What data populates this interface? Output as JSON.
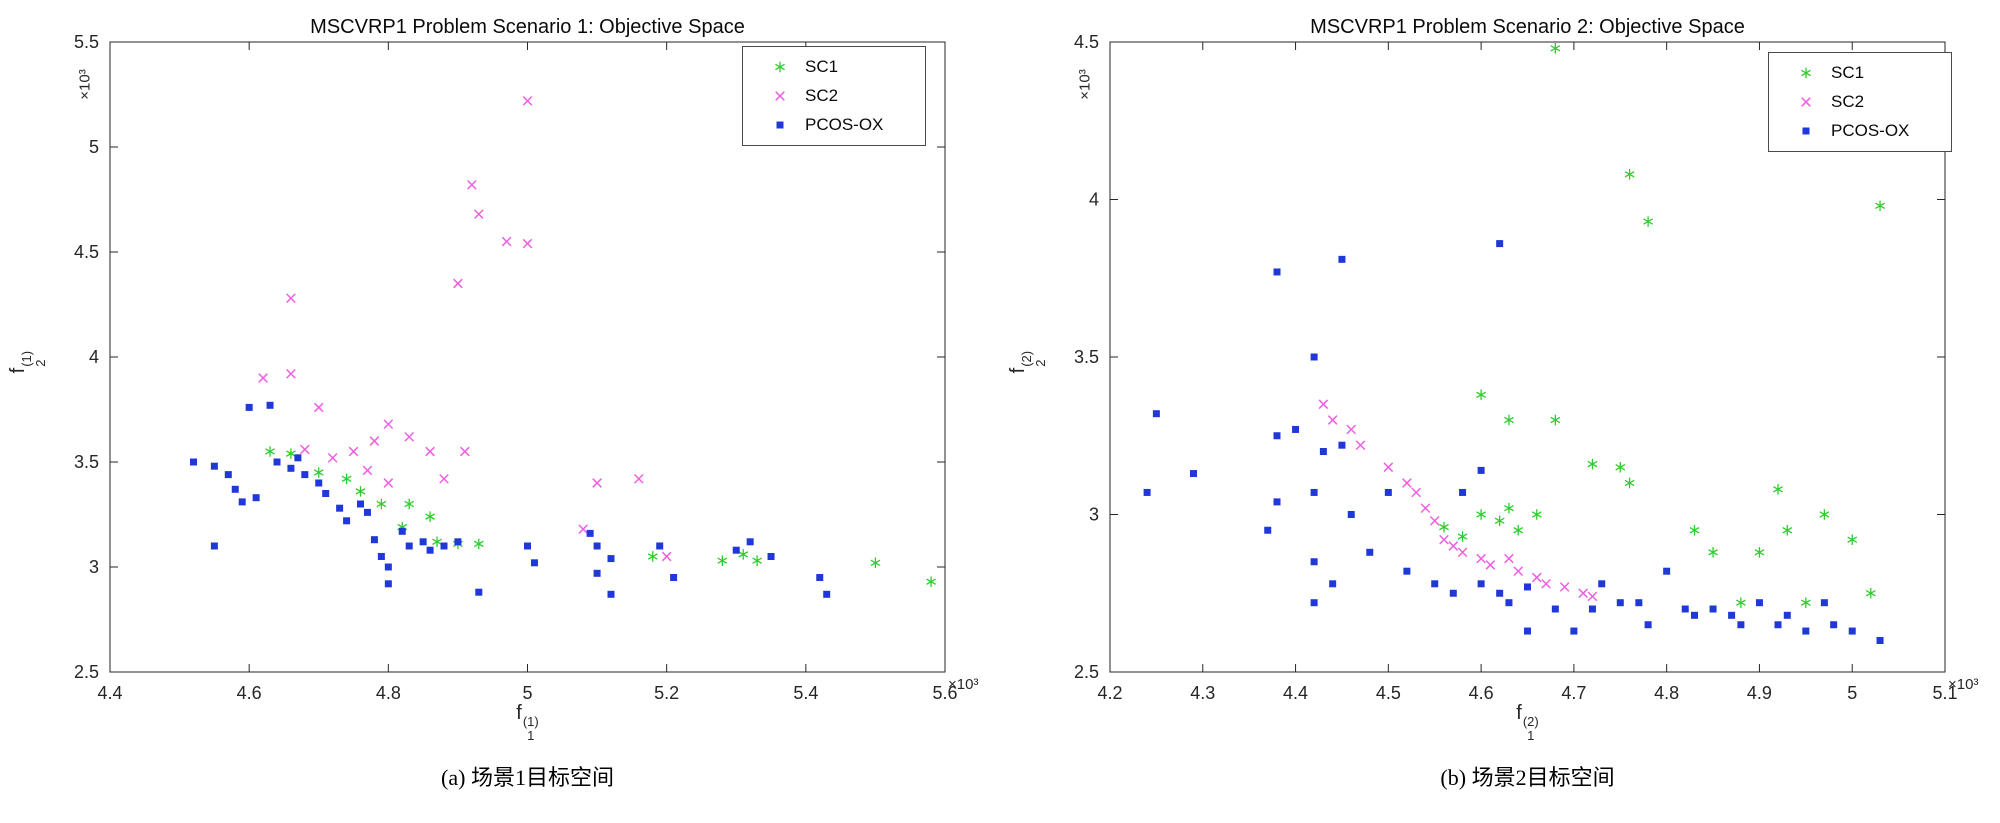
{
  "page": {
    "background": "#ffffff",
    "axis_color": "#262626"
  },
  "chart_data": [
    {
      "type": "scatter",
      "title": "MSCVRP1 Problem Scenario 1: Objective Space",
      "caption": "(a) 场景1目标空间",
      "xlabel": {
        "base": "f",
        "sub": "1",
        "sup": "(1)"
      },
      "ylabel": {
        "base": "f",
        "sub": "2",
        "sup": "(1)"
      },
      "x_exponent": "×10³",
      "y_exponent": "×10³",
      "xlim": [
        4.4,
        5.6
      ],
      "ylim": [
        2.5,
        5.5
      ],
      "xticks": [
        4.4,
        4.6,
        4.8,
        5.0,
        5.2,
        5.4,
        5.6
      ],
      "xtick_labels": [
        "4.4",
        "4.6",
        "4.8",
        "5",
        "5.2",
        "5.4",
        "5.6"
      ],
      "yticks": [
        2.5,
        3.0,
        3.5,
        4.0,
        4.5,
        5.0,
        5.5
      ],
      "ytick_labels": [
        "2.5",
        "3",
        "3.5",
        "4",
        "4.5",
        "5",
        "5.5"
      ],
      "grid": false,
      "legend_position": "top-right-inside",
      "series": [
        {
          "name": "SC1",
          "marker": "asterisk",
          "color": "#2ecc2e",
          "points": [
            [
              4.63,
              3.55
            ],
            [
              4.66,
              3.54
            ],
            [
              4.7,
              3.45
            ],
            [
              4.74,
              3.42
            ],
            [
              4.76,
              3.36
            ],
            [
              4.79,
              3.3
            ],
            [
              4.83,
              3.3
            ],
            [
              4.86,
              3.24
            ],
            [
              4.82,
              3.19
            ],
            [
              4.87,
              3.12
            ],
            [
              4.9,
              3.11
            ],
            [
              4.93,
              3.11
            ],
            [
              5.18,
              3.05
            ],
            [
              5.28,
              3.03
            ],
            [
              5.31,
              3.06
            ],
            [
              5.33,
              3.03
            ],
            [
              5.5,
              3.02
            ],
            [
              5.58,
              2.93
            ]
          ]
        },
        {
          "name": "SC2",
          "marker": "x",
          "color": "#ee5fe2",
          "points": [
            [
              5.0,
              5.22
            ],
            [
              4.92,
              4.82
            ],
            [
              4.93,
              4.68
            ],
            [
              4.97,
              4.55
            ],
            [
              5.0,
              4.54
            ],
            [
              4.9,
              4.35
            ],
            [
              4.66,
              4.28
            ],
            [
              4.62,
              3.9
            ],
            [
              4.66,
              3.92
            ],
            [
              4.7,
              3.76
            ],
            [
              4.68,
              3.56
            ],
            [
              4.72,
              3.52
            ],
            [
              4.75,
              3.55
            ],
            [
              4.78,
              3.6
            ],
            [
              4.8,
              3.68
            ],
            [
              4.83,
              3.62
            ],
            [
              4.86,
              3.55
            ],
            [
              4.91,
              3.55
            ],
            [
              4.77,
              3.46
            ],
            [
              4.8,
              3.4
            ],
            [
              4.88,
              3.42
            ],
            [
              5.1,
              3.4
            ],
            [
              5.16,
              3.42
            ],
            [
              5.08,
              3.18
            ],
            [
              5.2,
              3.05
            ]
          ]
        },
        {
          "name": "PCOS-OX",
          "marker": "square",
          "color": "#2038d8",
          "points": [
            [
              4.52,
              3.5
            ],
            [
              4.55,
              3.48
            ],
            [
              4.55,
              3.1
            ],
            [
              4.57,
              3.44
            ],
            [
              4.58,
              3.37
            ],
            [
              4.59,
              3.31
            ],
            [
              4.6,
              3.76
            ],
            [
              4.63,
              3.77
            ],
            [
              4.61,
              3.33
            ],
            [
              4.64,
              3.5
            ],
            [
              4.66,
              3.47
            ],
            [
              4.67,
              3.52
            ],
            [
              4.68,
              3.44
            ],
            [
              4.7,
              3.4
            ],
            [
              4.71,
              3.35
            ],
            [
              4.73,
              3.28
            ],
            [
              4.74,
              3.22
            ],
            [
              4.76,
              3.3
            ],
            [
              4.77,
              3.26
            ],
            [
              4.78,
              3.13
            ],
            [
              4.79,
              3.05
            ],
            [
              4.8,
              3.0
            ],
            [
              4.8,
              2.92
            ],
            [
              4.82,
              3.17
            ],
            [
              4.83,
              3.1
            ],
            [
              4.85,
              3.12
            ],
            [
              4.86,
              3.08
            ],
            [
              4.88,
              3.1
            ],
            [
              4.9,
              3.12
            ],
            [
              4.93,
              2.88
            ],
            [
              5.0,
              3.1
            ],
            [
              5.01,
              3.02
            ],
            [
              5.09,
              3.16
            ],
            [
              5.1,
              3.1
            ],
            [
              5.12,
              3.04
            ],
            [
              5.1,
              2.97
            ],
            [
              5.12,
              2.87
            ],
            [
              5.19,
              3.1
            ],
            [
              5.21,
              2.95
            ],
            [
              5.3,
              3.08
            ],
            [
              5.32,
              3.12
            ],
            [
              5.35,
              3.05
            ],
            [
              5.42,
              2.95
            ],
            [
              5.43,
              2.87
            ]
          ]
        }
      ]
    },
    {
      "type": "scatter",
      "title": "MSCVRP1 Problem Scenario 2: Objective Space",
      "caption": "(b) 场景2目标空间",
      "xlabel": {
        "base": "f",
        "sub": "1",
        "sup": "(2)"
      },
      "ylabel": {
        "base": "f",
        "sub": "2",
        "sup": "(2)"
      },
      "x_exponent": "×10³",
      "y_exponent": "×10³",
      "xlim": [
        4.2,
        5.1
      ],
      "ylim": [
        2.5,
        4.5
      ],
      "xticks": [
        4.2,
        4.3,
        4.4,
        4.5,
        4.6,
        4.7,
        4.8,
        4.9,
        5.0,
        5.1
      ],
      "xtick_labels": [
        "4.2",
        "4.3",
        "4.4",
        "4.5",
        "4.6",
        "4.7",
        "4.8",
        "4.9",
        "5",
        "5.1"
      ],
      "yticks": [
        2.5,
        3.0,
        3.5,
        4.0,
        4.5
      ],
      "ytick_labels": [
        "2.5",
        "3",
        "3.5",
        "4",
        "4.5"
      ],
      "grid": false,
      "legend_position": "top-right-inside",
      "series": [
        {
          "name": "SC1",
          "marker": "asterisk",
          "color": "#2ecc2e",
          "points": [
            [
              4.68,
              4.48
            ],
            [
              4.76,
              4.08
            ],
            [
              4.78,
              3.93
            ],
            [
              5.03,
              3.98
            ],
            [
              4.6,
              3.38
            ],
            [
              4.63,
              3.3
            ],
            [
              4.68,
              3.3
            ],
            [
              4.72,
              3.16
            ],
            [
              4.75,
              3.15
            ],
            [
              4.76,
              3.1
            ],
            [
              4.56,
              2.96
            ],
            [
              4.58,
              2.93
            ],
            [
              4.6,
              3.0
            ],
            [
              4.62,
              2.98
            ],
            [
              4.63,
              3.02
            ],
            [
              4.64,
              2.95
            ],
            [
              4.66,
              3.0
            ],
            [
              4.83,
              2.95
            ],
            [
              4.85,
              2.88
            ],
            [
              4.9,
              2.88
            ],
            [
              4.92,
              3.08
            ],
            [
              4.93,
              2.95
            ],
            [
              4.97,
              3.0
            ],
            [
              5.0,
              2.92
            ],
            [
              4.88,
              2.72
            ],
            [
              4.95,
              2.72
            ],
            [
              5.02,
              2.75
            ]
          ]
        },
        {
          "name": "SC2",
          "marker": "x",
          "color": "#ee5fe2",
          "points": [
            [
              4.43,
              3.35
            ],
            [
              4.44,
              3.3
            ],
            [
              4.46,
              3.27
            ],
            [
              4.47,
              3.22
            ],
            [
              4.5,
              3.15
            ],
            [
              4.52,
              3.1
            ],
            [
              4.53,
              3.07
            ],
            [
              4.54,
              3.02
            ],
            [
              4.55,
              2.98
            ],
            [
              4.56,
              2.92
            ],
            [
              4.57,
              2.9
            ],
            [
              4.58,
              2.88
            ],
            [
              4.6,
              2.86
            ],
            [
              4.61,
              2.84
            ],
            [
              4.63,
              2.86
            ],
            [
              4.64,
              2.82
            ],
            [
              4.66,
              2.8
            ],
            [
              4.67,
              2.78
            ],
            [
              4.69,
              2.77
            ],
            [
              4.71,
              2.75
            ],
            [
              4.72,
              2.74
            ]
          ]
        },
        {
          "name": "PCOS-OX",
          "marker": "square",
          "color": "#2038d8",
          "points": [
            [
              4.25,
              3.32
            ],
            [
              4.24,
              3.07
            ],
            [
              4.29,
              3.13
            ],
            [
              4.38,
              3.77
            ],
            [
              4.45,
              3.81
            ],
            [
              4.62,
              3.86
            ],
            [
              4.42,
              3.5
            ],
            [
              4.38,
              3.25
            ],
            [
              4.4,
              3.27
            ],
            [
              4.38,
              3.04
            ],
            [
              4.37,
              2.95
            ],
            [
              4.42,
              3.07
            ],
            [
              4.43,
              3.2
            ],
            [
              4.45,
              3.22
            ],
            [
              4.42,
              2.85
            ],
            [
              4.44,
              2.78
            ],
            [
              4.42,
              2.72
            ],
            [
              4.46,
              3.0
            ],
            [
              4.48,
              2.88
            ],
            [
              4.5,
              3.07
            ],
            [
              4.52,
              2.82
            ],
            [
              4.55,
              2.78
            ],
            [
              4.57,
              2.75
            ],
            [
              4.58,
              3.07
            ],
            [
              4.6,
              3.14
            ],
            [
              4.6,
              2.78
            ],
            [
              4.62,
              2.75
            ],
            [
              4.63,
              2.72
            ],
            [
              4.65,
              2.77
            ],
            [
              4.65,
              2.63
            ],
            [
              4.68,
              2.7
            ],
            [
              4.7,
              2.63
            ],
            [
              4.72,
              2.7
            ],
            [
              4.73,
              2.78
            ],
            [
              4.75,
              2.72
            ],
            [
              4.77,
              2.72
            ],
            [
              4.78,
              2.65
            ],
            [
              4.8,
              2.82
            ],
            [
              4.82,
              2.7
            ],
            [
              4.83,
              2.68
            ],
            [
              4.85,
              2.7
            ],
            [
              4.87,
              2.68
            ],
            [
              4.88,
              2.65
            ],
            [
              4.9,
              2.72
            ],
            [
              4.92,
              2.65
            ],
            [
              4.93,
              2.68
            ],
            [
              4.95,
              2.63
            ],
            [
              4.97,
              2.72
            ],
            [
              4.98,
              2.65
            ],
            [
              5.0,
              2.63
            ],
            [
              5.03,
              2.6
            ]
          ]
        }
      ]
    }
  ]
}
